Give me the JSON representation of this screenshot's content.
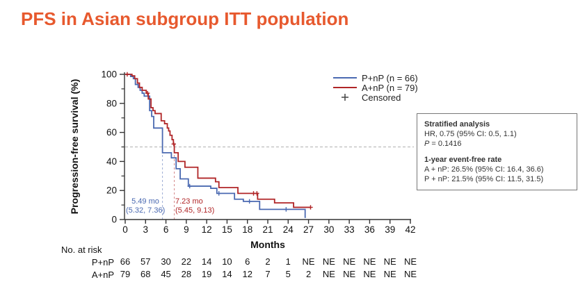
{
  "title": "PFS in Asian subgroup ITT population",
  "colors": {
    "title": "#e7592e",
    "pnp_blue": "#4a69b1",
    "anp_red": "#b02527",
    "dashed_reference": "#b0b0b0",
    "axis": "#333333",
    "censor_legend": "#444444",
    "box_border": "#777777"
  },
  "chart_data": {
    "type": "line",
    "subtype": "kaplan-meier-step",
    "xlabel": "Months",
    "ylabel": "Progression-free survival (%)",
    "xlim": [
      0,
      42
    ],
    "ylim": [
      0,
      100
    ],
    "xticks": [
      0,
      3,
      6,
      9,
      12,
      15,
      18,
      21,
      24,
      27,
      30,
      33,
      36,
      39,
      42
    ],
    "yticks_major": [
      0,
      20,
      40,
      60,
      80,
      100
    ],
    "yticks_minor": [
      10,
      30,
      50,
      70,
      90
    ],
    "grid": "off",
    "reference_line_y": 50,
    "legend_position": "top-right",
    "legend_censored_label": "Censored",
    "series": [
      {
        "name": "P+nP (n = 66)",
        "color": "#4a69b1",
        "median_label": "5.49 mo",
        "median_ci": "(5.32, 7.36)",
        "median_months": 5.49,
        "end_month": 26.6,
        "steps": [
          [
            0,
            100
          ],
          [
            0.8,
            98.5
          ],
          [
            1.2,
            97
          ],
          [
            1.5,
            93
          ],
          [
            1.9,
            91
          ],
          [
            2.2,
            89
          ],
          [
            2.5,
            87
          ],
          [
            2.8,
            85
          ],
          [
            3.6,
            75
          ],
          [
            3.9,
            71
          ],
          [
            4.2,
            63
          ],
          [
            5.49,
            46
          ],
          [
            6.8,
            42.5
          ],
          [
            7.5,
            35
          ],
          [
            8.1,
            28
          ],
          [
            9.3,
            23
          ],
          [
            12.6,
            21.5
          ],
          [
            13.5,
            18
          ],
          [
            16.1,
            14
          ],
          [
            17.4,
            12.5
          ],
          [
            19.8,
            7
          ],
          [
            26.5,
            1.5
          ]
        ],
        "censors": [
          [
            9.5,
            23
          ],
          [
            13.8,
            18
          ],
          [
            18.3,
            12.5
          ],
          [
            23.7,
            7
          ]
        ]
      },
      {
        "name": "A+nP (n = 79)",
        "color": "#b02527",
        "median_label": "7.23 mo",
        "median_ci": "(5.45, 9.13)",
        "median_months": 7.23,
        "end_month": 27.3,
        "steps": [
          [
            0,
            100
          ],
          [
            1.0,
            99
          ],
          [
            1.4,
            97
          ],
          [
            1.8,
            94
          ],
          [
            2.1,
            91
          ],
          [
            2.5,
            89
          ],
          [
            3.1,
            87
          ],
          [
            3.4,
            83
          ],
          [
            3.8,
            77
          ],
          [
            4.1,
            75
          ],
          [
            4.4,
            73
          ],
          [
            5.3,
            68
          ],
          [
            5.8,
            66
          ],
          [
            6.2,
            63
          ],
          [
            6.4,
            61
          ],
          [
            6.6,
            58
          ],
          [
            6.9,
            55
          ],
          [
            7.1,
            52
          ],
          [
            7.23,
            46
          ],
          [
            7.8,
            40
          ],
          [
            8.8,
            36
          ],
          [
            10.7,
            28.5
          ],
          [
            13.3,
            26
          ],
          [
            13.8,
            22
          ],
          [
            16.6,
            18
          ],
          [
            19.5,
            14
          ],
          [
            22.0,
            11.5
          ],
          [
            24.8,
            8.4
          ]
        ],
        "censors": [
          [
            0.3,
            100
          ],
          [
            3.3,
            87
          ],
          [
            7.15,
            52
          ],
          [
            18.9,
            18
          ],
          [
            19.4,
            18
          ],
          [
            27.3,
            8.4
          ]
        ]
      }
    ]
  },
  "stats_box": {
    "stratified_heading": "Stratified analysis",
    "hr_line": "HR, 0.75 (95% CI: 0.5, 1.1)",
    "p_label": "P",
    "p_rest": " = 0.1416",
    "event_free_heading": "1-year event-free rate",
    "anp_line": "A + nP: 26.5% (95% CI: 16.4, 36.6)",
    "pnp_line": "P + nP: 21.5% (95% CI: 11.5, 31.5)"
  },
  "risk_table": {
    "heading": "No. at risk",
    "rows": [
      {
        "label": "P+nP",
        "values": [
          "66",
          "57",
          "30",
          "22",
          "14",
          "10",
          "6",
          "2",
          "1",
          "NE",
          "NE",
          "NE",
          "NE",
          "NE",
          "NE"
        ]
      },
      {
        "label": "A+nP",
        "values": [
          "79",
          "68",
          "45",
          "28",
          "19",
          "14",
          "12",
          "7",
          "5",
          "2",
          "NE",
          "NE",
          "NE",
          "NE",
          "NE"
        ]
      }
    ]
  }
}
